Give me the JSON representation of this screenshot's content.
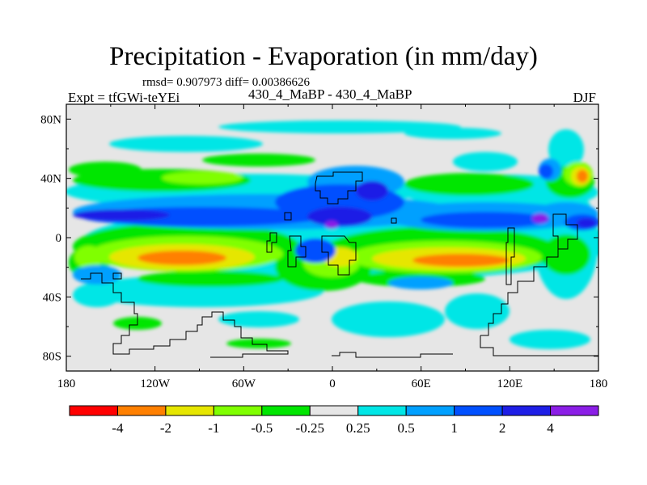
{
  "header": {
    "title": "Precipitation - Evaporation (in mm/day)",
    "stats": "rmsd= 0.907973 diff= 0.00386626",
    "left_string": "Expt = tfGWi-teYEi",
    "center_string": "430_4_MaBP - 430_4_MaBP",
    "right_string": "DJF"
  },
  "map": {
    "type": "filled-contour",
    "projection": "cylindrical-equidistant",
    "lon_range": [
      -180,
      180
    ],
    "lat_range": [
      -90,
      90
    ],
    "ocean_neutral_color": "#e6e6e6",
    "x_ticks": [
      {
        "value": -180,
        "label": "180"
      },
      {
        "value": -120,
        "label": "120W"
      },
      {
        "value": -60,
        "label": "60W"
      },
      {
        "value": 0,
        "label": "0"
      },
      {
        "value": 60,
        "label": "60E"
      },
      {
        "value": 120,
        "label": "120E"
      },
      {
        "value": 180,
        "label": "180"
      }
    ],
    "y_ticks": [
      {
        "value": 80,
        "label": "80N"
      },
      {
        "value": 40,
        "label": "40N"
      },
      {
        "value": 0,
        "label": "0"
      },
      {
        "value": -40,
        "label": "40S"
      },
      {
        "value": -80,
        "label": "80S"
      }
    ]
  },
  "colorbar": {
    "colors": [
      "#ff0000",
      "#ff8000",
      "#e6e600",
      "#80ff00",
      "#00e600",
      "#e6e6e6",
      "#00e6e6",
      "#00a0ff",
      "#0050ff",
      "#1e1ee6",
      "#8b1ee6"
    ],
    "labels": [
      "-4",
      "-2",
      "-1",
      "-0.5",
      "-0.25",
      "0.25",
      "0.5",
      "1",
      "2",
      "4"
    ]
  }
}
